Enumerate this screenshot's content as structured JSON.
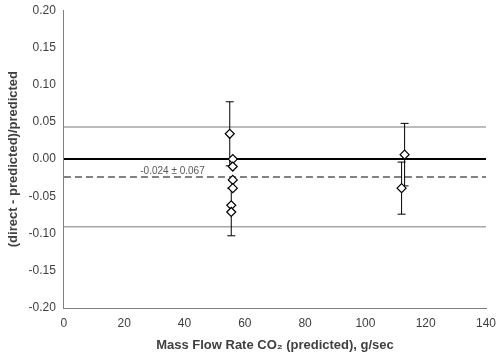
{
  "chart_data": {
    "type": "scatter",
    "x_label": "Mass Flow Rate CO₂ (predicted), g/sec",
    "y_label": "(direct - predicted)/predicted",
    "x": [
      55,
      56,
      56,
      56,
      56,
      55.5,
      55.5,
      112,
      113
    ],
    "values": [
      0.034,
      0.0,
      -0.01,
      -0.028,
      -0.039,
      -0.062,
      -0.071,
      -0.039,
      0.006
    ],
    "errors": [
      0.043,
      null,
      null,
      null,
      null,
      null,
      0.032,
      0.035,
      0.042
    ],
    "color": "#000000",
    "marker": "diamond",
    "grid": false,
    "xlim": [
      0,
      140
    ],
    "xticks": [
      0,
      20,
      40,
      60,
      80,
      100,
      120,
      140
    ],
    "ylim": [
      -0.2,
      0.2
    ],
    "yticks": [
      {
        "value": -0.2,
        "label": "-0.20"
      },
      {
        "value": -0.15,
        "label": "-0.15"
      },
      {
        "value": -0.1,
        "label": "-0.10"
      },
      {
        "value": -0.05,
        "label": "-0.05"
      },
      {
        "value": 0,
        "label": "0.00"
      },
      {
        "value": 0.05,
        "label": "0.05"
      },
      {
        "value": 0.1,
        "label": "0.10"
      },
      {
        "value": 0.15,
        "label": "0.15"
      },
      {
        "value": 0.2,
        "label": "0.20"
      }
    ],
    "hlines": [
      {
        "value": 0.043,
        "color": "#a6a6a6",
        "line_style": "solid"
      },
      {
        "value": -0.091,
        "color": "#a6a6a6",
        "line_style": "solid"
      },
      {
        "value": -0.024,
        "color": "#595959",
        "line_style": "dashed"
      },
      {
        "value": 0,
        "color": "#000000",
        "line_style": "solid"
      }
    ],
    "annotations": [
      {
        "text": "-0.024 ± 0.067",
        "x": 36,
        "y": -0.016
      }
    ]
  }
}
